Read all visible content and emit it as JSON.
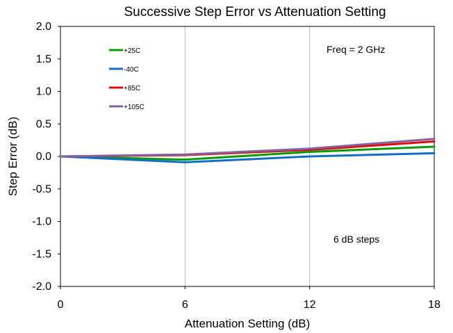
{
  "chart_data": {
    "type": "line",
    "title": "Successive Step Error vs Attenuation Setting",
    "xlabel": "Attenuation Setting (dB)",
    "ylabel": "Step Error (dB)",
    "x": [
      0,
      6,
      12,
      18
    ],
    "xticks": [
      0,
      6,
      12,
      18
    ],
    "xtick_labels": [
      "0",
      "6",
      "12",
      "18"
    ],
    "xlim": [
      0,
      18
    ],
    "yticks": [
      -2.0,
      -1.5,
      -1.0,
      -0.5,
      0.0,
      0.5,
      1.0,
      1.5,
      2.0
    ],
    "ytick_labels": [
      "-2.0",
      "-1.5",
      "-1.0",
      "-0.5",
      "0.0",
      "0.5",
      "1.0",
      "1.5",
      "2.0"
    ],
    "ylim": [
      -2.0,
      2.0
    ],
    "grid": "vertical",
    "legend_position": "top-left",
    "series": [
      {
        "name": "+25C",
        "color": "#0a9a0a",
        "values": [
          0.0,
          -0.05,
          0.07,
          0.15
        ]
      },
      {
        "name": "-40C",
        "color": "#0f6fc6",
        "values": [
          0.0,
          -0.09,
          0.0,
          0.05
        ]
      },
      {
        "name": "+85C",
        "color": "#e00c0c",
        "values": [
          0.0,
          0.02,
          0.1,
          0.23
        ]
      },
      {
        "name": "+105C",
        "color": "#8064a2",
        "values": [
          0.0,
          0.03,
          0.12,
          0.27
        ]
      }
    ],
    "annotations": [
      {
        "text": "Freq = 2 GHz"
      },
      {
        "text": "6 dB steps"
      }
    ]
  }
}
